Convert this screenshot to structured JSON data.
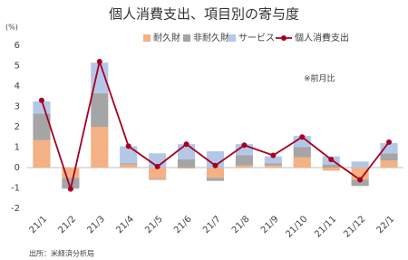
{
  "chart_data": {
    "type": "bar",
    "title": "個人消費支出、項目別の寄与度",
    "y_unit": "(%)",
    "annotation": "※前月比",
    "source": "出所：米経済分析局",
    "categories": [
      "21/1",
      "21/2",
      "21/3",
      "21/4",
      "21/5",
      "21/6",
      "21/7",
      "21/8",
      "21/9",
      "21/10",
      "21/11",
      "21/12",
      "22/1"
    ],
    "series": [
      {
        "name": "耐久財",
        "color": "#f4b183",
        "type": "bar",
        "values": [
          1.35,
          -0.5,
          2.0,
          0.15,
          -0.55,
          -0.05,
          -0.5,
          0.1,
          0.1,
          0.5,
          -0.15,
          -0.6,
          0.35
        ]
      },
      {
        "name": "非耐久財",
        "color": "#a5a5a5",
        "type": "bar",
        "values": [
          1.3,
          -0.5,
          1.65,
          0.05,
          -0.05,
          0.4,
          -0.15,
          0.5,
          0.1,
          0.5,
          0.15,
          -0.3,
          0.35
        ]
      },
      {
        "name": "サービス",
        "color": "#b4c7e7",
        "type": "bar",
        "values": [
          0.6,
          -0.05,
          1.5,
          0.85,
          0.7,
          0.75,
          0.8,
          0.55,
          0.35,
          0.55,
          0.4,
          0.3,
          0.5
        ]
      },
      {
        "name": "個人消費支出",
        "color": "#a50021",
        "type": "line",
        "values": [
          3.3,
          -1.05,
          5.2,
          1.05,
          0.05,
          1.15,
          0.1,
          1.1,
          0.6,
          1.5,
          0.4,
          -0.6,
          1.25
        ]
      }
    ],
    "ylim": [
      -2,
      6
    ],
    "yticks": [
      -2,
      -1,
      0,
      1,
      2,
      3,
      4,
      5,
      6
    ],
    "grid": false
  }
}
